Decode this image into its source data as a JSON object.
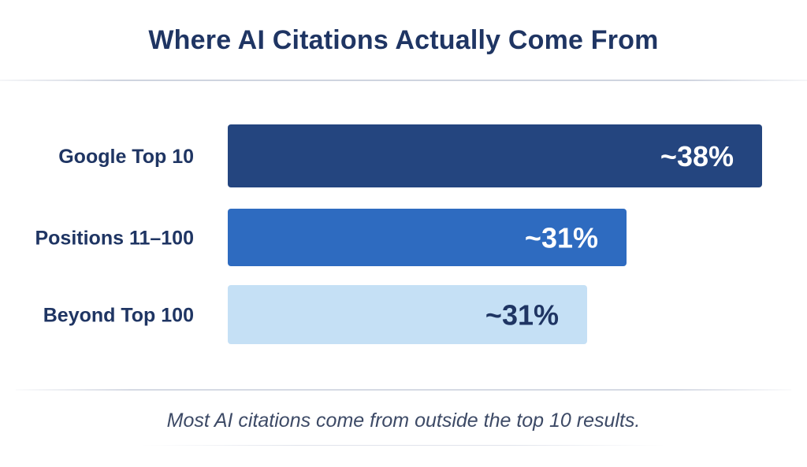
{
  "chart_data": {
    "type": "bar",
    "orientation": "horizontal",
    "title": "Where AI Citations Actually Come From",
    "categories": [
      "Google Top 10",
      "Positions 11–100",
      "Beyond Top 100"
    ],
    "values": [
      38,
      31,
      31
    ],
    "value_labels": [
      "~38%",
      "~31%",
      "~31%"
    ],
    "colors": [
      "#24457f",
      "#2e6bc0",
      "#c5e0f5"
    ],
    "label_colors": [
      "#ffffff",
      "#ffffff",
      "#1f3563"
    ],
    "unit": "%",
    "xlabel": "",
    "ylabel": "",
    "grid": false,
    "legend": "none"
  },
  "caption": "Most AI citations come from outside the top 10 results."
}
